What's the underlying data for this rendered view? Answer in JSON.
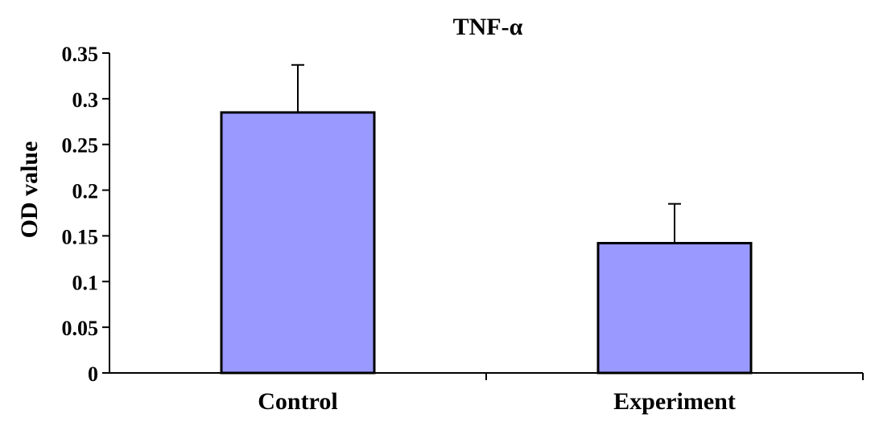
{
  "chart_data": {
    "type": "bar",
    "title": "TNF-α",
    "xlabel": "",
    "ylabel": "OD value",
    "categories": [
      "Control",
      "Experiment"
    ],
    "values": [
      0.285,
      0.142
    ],
    "error": [
      0.052,
      0.043
    ],
    "ylim": [
      0,
      0.35
    ],
    "yticks": [
      0,
      0.05,
      0.1,
      0.15,
      0.2,
      0.25,
      0.3,
      0.35
    ],
    "ytick_labels": [
      "0",
      "0.05",
      "0.1",
      "0.15",
      "0.2",
      "0.25",
      "0.3",
      "0.35"
    ],
    "grid": false,
    "legend": "none",
    "bar_color": "#9999ff",
    "edge_color": "#000000"
  }
}
